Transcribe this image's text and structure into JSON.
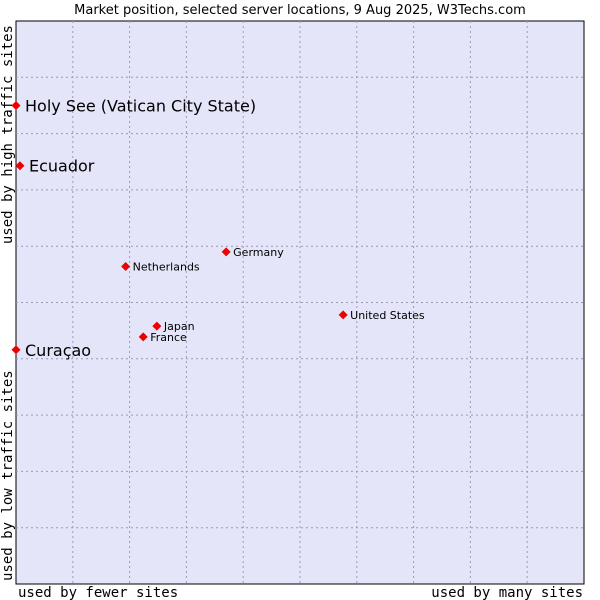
{
  "title": "Market position, selected server locations, 9 Aug 2025, W3Techs.com",
  "axis_labels": {
    "x_low": "used by fewer sites",
    "x_high": "used by many sites",
    "y_low": "used by low traffic sites",
    "y_high": "used by high traffic sites"
  },
  "colors": {
    "plot_background": "#e4e5f8",
    "grid": "#9a9ab8",
    "marker": "#ee0000"
  },
  "chart_data": {
    "type": "scatter",
    "title": "Market position, selected server locations, 9 Aug 2025, W3Techs.com",
    "xlabel": "used by fewer sites ... used by many sites",
    "ylabel": "used by low traffic sites ... used by high traffic sites",
    "xlim": [
      0,
      10
    ],
    "ylim": [
      0,
      10
    ],
    "grid": true,
    "points": [
      {
        "label": "Holy See (Vatican City State)",
        "x": 0.0,
        "y": 8.5,
        "emphasis": true
      },
      {
        "label": "Ecuador",
        "x": 0.07,
        "y": 7.43,
        "emphasis": true
      },
      {
        "label": "Germany",
        "x": 3.7,
        "y": 5.9,
        "emphasis": false
      },
      {
        "label": "Netherlands",
        "x": 1.93,
        "y": 5.64,
        "emphasis": false
      },
      {
        "label": "United States",
        "x": 5.76,
        "y": 4.78,
        "emphasis": false
      },
      {
        "label": "Japan",
        "x": 2.48,
        "y": 4.58,
        "emphasis": false
      },
      {
        "label": "France",
        "x": 2.24,
        "y": 4.39,
        "emphasis": false
      },
      {
        "label": "Curaçao",
        "x": 0.0,
        "y": 4.16,
        "emphasis": true
      }
    ]
  }
}
